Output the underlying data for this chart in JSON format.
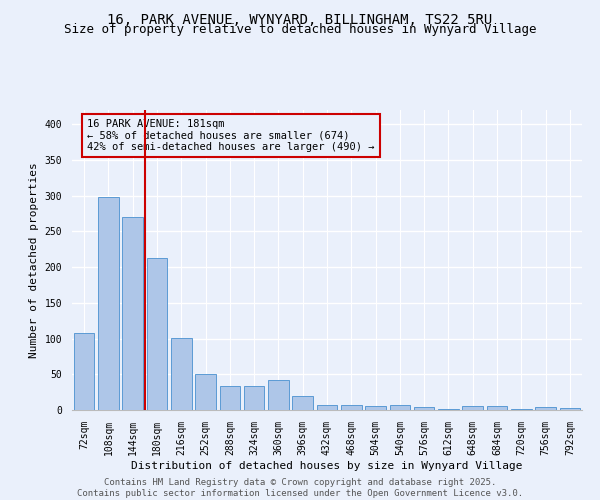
{
  "title": "16, PARK AVENUE, WYNYARD, BILLINGHAM, TS22 5RU",
  "subtitle": "Size of property relative to detached houses in Wynyard Village",
  "xlabel": "Distribution of detached houses by size in Wynyard Village",
  "ylabel": "Number of detached properties",
  "categories": [
    "72sqm",
    "108sqm",
    "144sqm",
    "180sqm",
    "216sqm",
    "252sqm",
    "288sqm",
    "324sqm",
    "360sqm",
    "396sqm",
    "432sqm",
    "468sqm",
    "504sqm",
    "540sqm",
    "576sqm",
    "612sqm",
    "648sqm",
    "684sqm",
    "720sqm",
    "756sqm",
    "792sqm"
  ],
  "values": [
    108,
    298,
    270,
    213,
    101,
    51,
    34,
    34,
    42,
    19,
    7,
    7,
    6,
    7,
    4,
    1,
    5,
    5,
    2,
    4,
    3
  ],
  "bar_color": "#aec6e8",
  "bar_edge_color": "#5b9bd5",
  "vline_color": "#cc0000",
  "vline_index": 2.5,
  "annotation_text": "16 PARK AVENUE: 181sqm\n← 58% of detached houses are smaller (674)\n42% of semi-detached houses are larger (490) →",
  "annotation_box_color": "#cc0000",
  "ylim": [
    0,
    420
  ],
  "yticks": [
    0,
    50,
    100,
    150,
    200,
    250,
    300,
    350,
    400
  ],
  "footer": "Contains HM Land Registry data © Crown copyright and database right 2025.\nContains public sector information licensed under the Open Government Licence v3.0.",
  "background_color": "#eaf0fb",
  "grid_color": "#ffffff",
  "title_fontsize": 10,
  "subtitle_fontsize": 9,
  "tick_fontsize": 7,
  "ylabel_fontsize": 8,
  "xlabel_fontsize": 8,
  "annotation_fontsize": 7.5,
  "footer_fontsize": 6.5
}
